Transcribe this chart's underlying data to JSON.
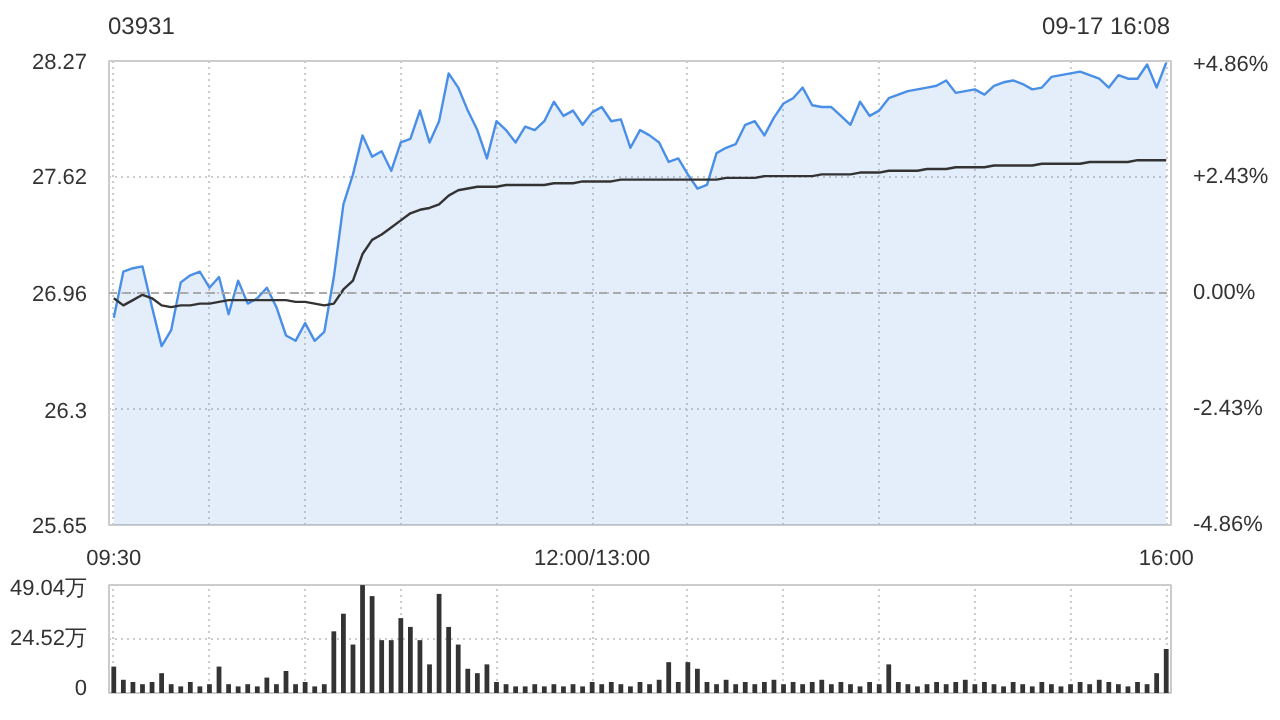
{
  "chart_data": [
    {
      "type": "line",
      "title": "03931",
      "annotations": [
        "09-17 16:08"
      ],
      "categories": [
        "09:30",
        null,
        null,
        null,
        null,
        null,
        null,
        null,
        null,
        null,
        null,
        null,
        null,
        null,
        null,
        null,
        null,
        null,
        null,
        null,
        null,
        null,
        null,
        null,
        null,
        null,
        null,
        null,
        null,
        null,
        null,
        null,
        null,
        null,
        null,
        null,
        null,
        null,
        null,
        null,
        null,
        null,
        null,
        null,
        null,
        null,
        null,
        null,
        null,
        null,
        "12:00/13:00",
        null,
        null,
        null,
        null,
        null,
        null,
        null,
        null,
        null,
        null,
        null,
        null,
        null,
        null,
        null,
        null,
        null,
        null,
        null,
        null,
        null,
        null,
        null,
        null,
        null,
        null,
        null,
        null,
        null,
        null,
        null,
        null,
        null,
        null,
        null,
        null,
        null,
        null,
        null,
        null,
        null,
        null,
        null,
        null,
        null,
        null,
        null,
        null,
        null,
        null,
        null,
        null,
        null,
        null,
        null,
        null,
        null,
        null,
        null,
        "16:00"
      ],
      "series": [
        {
          "type": "area",
          "color": "#4a8fe7",
          "values": [
            26.82,
            27.08,
            27.1,
            27.11,
            26.88,
            26.66,
            26.75,
            27.02,
            27.06,
            27.08,
            26.99,
            27.05,
            26.84,
            27.03,
            26.9,
            26.93,
            26.99,
            26.88,
            26.72,
            26.69,
            26.79,
            26.69,
            26.74,
            27.05,
            27.46,
            27.63,
            27.85,
            27.73,
            27.76,
            27.65,
            27.81,
            27.83,
            27.99,
            27.81,
            27.93,
            28.2,
            28.12,
            27.99,
            27.88,
            27.72,
            27.93,
            27.88,
            27.81,
            27.9,
            27.88,
            27.93,
            28.04,
            27.96,
            27.99,
            27.91,
            27.98,
            28.01,
            27.93,
            27.94,
            27.78,
            27.88,
            27.85,
            27.81,
            27.7,
            27.72,
            27.63,
            27.55,
            27.57,
            27.75,
            27.78,
            27.8,
            27.91,
            27.93,
            27.85,
            27.95,
            28.03,
            28.06,
            28.12,
            28.02,
            28.01,
            28.01,
            27.96,
            27.91,
            28.04,
            27.96,
            27.99,
            28.06,
            28.08,
            28.1,
            28.11,
            28.12,
            28.13,
            28.16,
            28.09,
            28.1,
            28.11,
            28.08,
            28.13,
            28.15,
            28.16,
            28.14,
            28.11,
            28.12,
            28.18,
            28.19,
            28.2,
            28.21,
            28.19,
            28.17,
            28.12,
            28.19,
            28.17,
            28.17,
            28.25,
            28.12,
            28.26
          ]
        },
        {
          "type": "line",
          "color": "#333333",
          "values": [
            26.93,
            26.89,
            26.92,
            26.95,
            26.93,
            26.89,
            26.88,
            26.89,
            26.89,
            26.9,
            26.9,
            26.91,
            26.92,
            26.92,
            26.92,
            26.92,
            26.92,
            26.92,
            26.92,
            26.91,
            26.91,
            26.9,
            26.89,
            26.9,
            26.98,
            27.03,
            27.18,
            27.26,
            27.29,
            27.33,
            27.37,
            27.41,
            27.43,
            27.44,
            27.46,
            27.51,
            27.54,
            27.55,
            27.56,
            27.56,
            27.56,
            27.57,
            27.57,
            27.57,
            27.57,
            27.57,
            27.58,
            27.58,
            27.58,
            27.59,
            27.59,
            27.59,
            27.59,
            27.6,
            27.6,
            27.6,
            27.6,
            27.6,
            27.6,
            27.6,
            27.6,
            27.6,
            27.6,
            27.6,
            27.61,
            27.61,
            27.61,
            27.61,
            27.62,
            27.62,
            27.62,
            27.62,
            27.62,
            27.62,
            27.63,
            27.63,
            27.63,
            27.63,
            27.64,
            27.64,
            27.64,
            27.65,
            27.65,
            27.65,
            27.65,
            27.66,
            27.66,
            27.66,
            27.67,
            27.67,
            27.67,
            27.67,
            27.68,
            27.68,
            27.68,
            27.68,
            27.68,
            27.69,
            27.69,
            27.69,
            27.69,
            27.69,
            27.7,
            27.7,
            27.7,
            27.7,
            27.7,
            27.71,
            27.71,
            27.71,
            27.71
          ]
        }
      ],
      "ylim": [
        25.65,
        28.27
      ],
      "yticks": [
        25.65,
        26.3,
        26.96,
        27.62,
        28.27
      ],
      "y2lim": [
        -4.86,
        4.86
      ],
      "y2ticks": [
        {
          "value": -4.86,
          "label": "-4.86%"
        },
        {
          "value": -2.43,
          "label": "-2.43%"
        },
        {
          "value": 0,
          "label": "0.00%"
        },
        {
          "value": 2.43,
          "label": "+2.43%"
        },
        {
          "value": 4.86,
          "label": "+4.86%"
        }
      ],
      "grid": true,
      "ref_lines": [
        {
          "axis": "y",
          "value": 26.96,
          "label": null,
          "line_style": "dashed",
          "color": "#aaaaaa"
        }
      ]
    },
    {
      "type": "bar",
      "color": "#333333",
      "categories": [
        null,
        null,
        null,
        null,
        null,
        null,
        null,
        null,
        null,
        null,
        null,
        null,
        null,
        null,
        null,
        null,
        null,
        null,
        null,
        null,
        null,
        null,
        null,
        null,
        null,
        null,
        null,
        null,
        null,
        null,
        null,
        null,
        null,
        null,
        null,
        null,
        null,
        null,
        null,
        null,
        null,
        null,
        null,
        null,
        null,
        null,
        null,
        null,
        null,
        null,
        null,
        null,
        null,
        null,
        null,
        null,
        null,
        null,
        null,
        null,
        null,
        null,
        null,
        null,
        null,
        null,
        null,
        null,
        null,
        null,
        null,
        null,
        null,
        null,
        null,
        null,
        null,
        null,
        null,
        null,
        null,
        null,
        null,
        null,
        null,
        null,
        null,
        null,
        null,
        null,
        null,
        null,
        null,
        null,
        null,
        null,
        null,
        null,
        null,
        null,
        null,
        null,
        null,
        null,
        null,
        null,
        null,
        null,
        null,
        null,
        null
      ],
      "values": [
        12,
        6,
        5,
        4,
        5,
        9,
        4,
        3,
        5,
        3,
        4,
        12,
        4,
        3,
        4,
        3,
        7,
        4,
        10,
        4,
        5,
        3,
        4,
        28,
        36,
        22,
        49,
        44,
        24,
        24,
        34,
        30,
        24,
        13,
        45,
        30,
        22,
        11,
        9,
        13,
        5,
        4,
        3,
        3,
        4,
        3,
        4,
        3,
        4,
        3,
        5,
        4,
        5,
        4,
        3,
        5,
        4,
        6,
        14,
        5,
        14,
        11,
        5,
        4,
        6,
        4,
        5,
        4,
        5,
        6,
        4,
        5,
        4,
        5,
        6,
        4,
        5,
        4,
        3,
        5,
        4,
        13,
        5,
        4,
        3,
        4,
        5,
        4,
        5,
        6,
        4,
        5,
        4,
        3,
        5,
        4,
        3,
        5,
        4,
        3,
        4,
        5,
        4,
        6,
        5,
        4,
        3,
        5,
        4,
        9,
        20
      ],
      "ylim": [
        0,
        49.04
      ],
      "yticks": [
        0,
        {
          "value": 24.52,
          "label": "24.52万"
        },
        {
          "value": 49.04,
          "label": "49.04万"
        }
      ],
      "grid": true,
      "tick_labels": "y"
    }
  ]
}
